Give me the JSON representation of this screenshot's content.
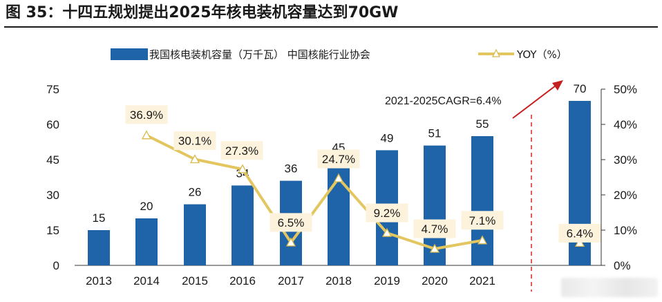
{
  "title": "图 35：十四五规划提出2025年核电装机容量达到70GW",
  "chart_data": {
    "type": "bar+line",
    "categories": [
      "2013",
      "2014",
      "2015",
      "2016",
      "2017",
      "2018",
      "2019",
      "2020",
      "2021",
      ""
    ],
    "series": [
      {
        "name": "我国核电装机容量（万千瓦） 中国核能行业协会",
        "kind": "bar",
        "axis": "left",
        "values": [
          15,
          20,
          26,
          34,
          36,
          45,
          49,
          51,
          55,
          70
        ],
        "labels": [
          "15",
          "20",
          "26",
          "34",
          "36",
          "45",
          "49",
          "51",
          "55",
          "70"
        ],
        "color": "#1f64a8"
      },
      {
        "name": "YOY（%）",
        "kind": "line",
        "axis": "right",
        "values": [
          null,
          36.9,
          30.1,
          27.3,
          6.5,
          24.7,
          9.2,
          4.7,
          7.1,
          6.4
        ],
        "labels": [
          "",
          "36.9%",
          "30.1%",
          "27.3%",
          "6.5%",
          "24.7%",
          "9.2%",
          "4.7%",
          "7.1%",
          "6.4%"
        ],
        "color": "#e3c660"
      }
    ],
    "y_left": {
      "min": 0,
      "max": 75,
      "ticks": [
        "0",
        "15",
        "30",
        "45",
        "60",
        "75"
      ]
    },
    "y_right": {
      "min": 0,
      "max": 50,
      "ticks": [
        "0%",
        "10%",
        "20%",
        "30%",
        "40%",
        "50%"
      ]
    },
    "annotation": "2021-2025CAGR=6.4%",
    "legend_position": "top"
  }
}
